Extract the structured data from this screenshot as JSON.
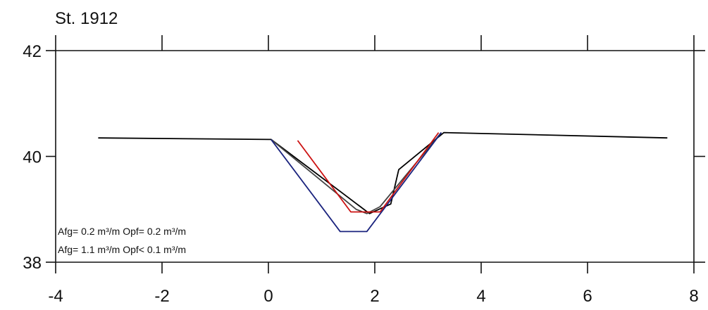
{
  "chart_data": {
    "type": "line",
    "title": "St. 1912",
    "xlabel": "",
    "ylabel": "",
    "xlim": [
      -4,
      8
    ],
    "ylim": [
      38,
      42
    ],
    "xticks": [
      -4,
      -2,
      0,
      2,
      4,
      6,
      8
    ],
    "yticks": [
      38,
      40,
      42
    ],
    "grid": false,
    "series": [
      {
        "color": "#000000",
        "points": [
          [
            -3.2,
            40.35
          ],
          [
            0.05,
            40.32
          ],
          [
            1.4,
            39.3
          ],
          [
            1.9,
            38.92
          ],
          [
            2.3,
            39.1
          ],
          [
            2.45,
            39.75
          ],
          [
            3.3,
            40.45
          ],
          [
            7.5,
            40.35
          ]
        ]
      },
      {
        "color": "#444444",
        "points": [
          [
            0.05,
            40.32
          ],
          [
            1.65,
            39.0
          ],
          [
            1.85,
            38.92
          ],
          [
            2.1,
            39.05
          ],
          [
            2.55,
            39.6
          ],
          [
            3.25,
            40.45
          ]
        ]
      },
      {
        "color": "#1a237e",
        "points": [
          [
            0.05,
            40.32
          ],
          [
            1.35,
            38.58
          ],
          [
            1.85,
            38.58
          ],
          [
            3.25,
            40.45
          ]
        ]
      },
      {
        "color": "#cc1111",
        "points": [
          [
            0.55,
            40.3
          ],
          [
            1.55,
            38.95
          ],
          [
            2.1,
            38.95
          ],
          [
            3.2,
            40.45
          ]
        ]
      }
    ],
    "annotations": [
      "Afg= 0.2 m³/m  Opf= 0.2 m³/m",
      "Afg= 1.1 m³/m  Opf< 0.1 m³/m"
    ]
  }
}
